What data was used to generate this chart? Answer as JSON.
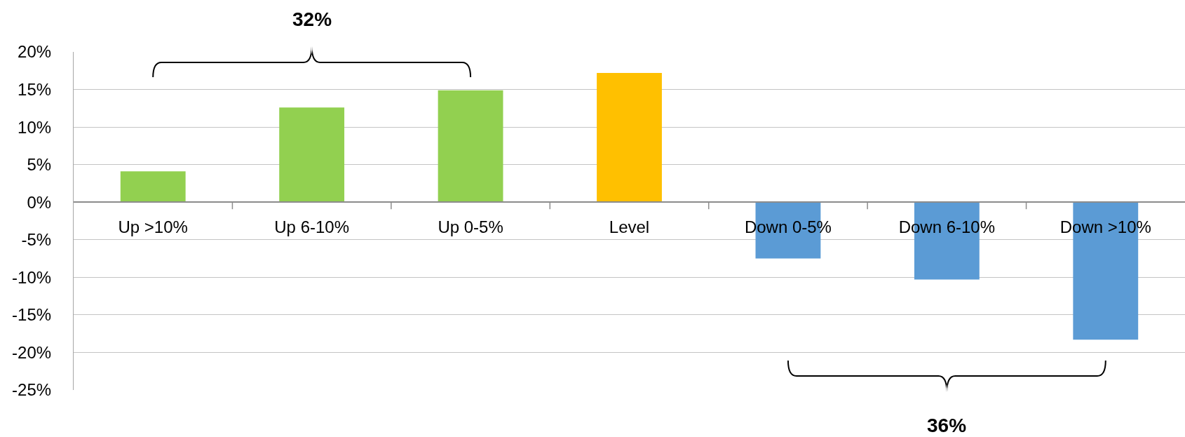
{
  "chart_data": {
    "type": "bar",
    "categories": [
      "Up >10%",
      "Up 6-10%",
      "Up 0-5%",
      "Level",
      "Down 0-5%",
      "Down 6-10%",
      "Down >10%"
    ],
    "values": [
      4.1,
      12.6,
      14.9,
      17.2,
      -7.5,
      -10.3,
      -18.3
    ],
    "colors": [
      "#92d050",
      "#92d050",
      "#92d050",
      "#ffc000",
      "#5b9bd5",
      "#5b9bd5",
      "#5b9bd5"
    ],
    "ylim": [
      -25,
      20
    ],
    "yticks": [
      {
        "value": -25,
        "label": "-25%"
      },
      {
        "value": -20,
        "label": "-20%"
      },
      {
        "value": -15,
        "label": "-15%"
      },
      {
        "value": -10,
        "label": "-10%"
      },
      {
        "value": -5,
        "label": "-5%"
      },
      {
        "value": 0,
        "label": "0%"
      },
      {
        "value": 5,
        "label": "5%"
      },
      {
        "value": 10,
        "label": "10%"
      },
      {
        "value": 15,
        "label": "15%"
      },
      {
        "value": 20,
        "label": "20%"
      }
    ],
    "grid": "y",
    "annotations": [
      "32%",
      "36%"
    ]
  }
}
